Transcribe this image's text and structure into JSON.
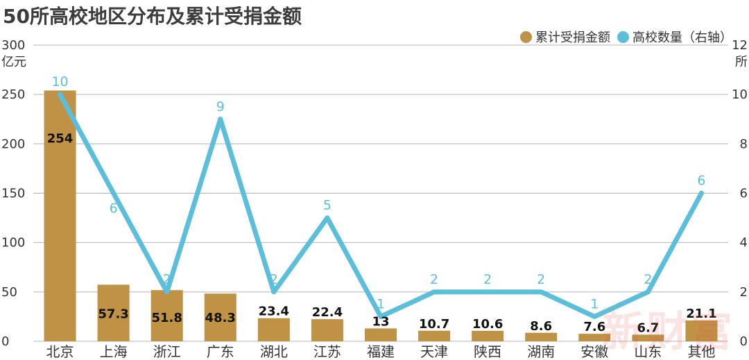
{
  "title": "50所高校地区分布及累计受捐金额",
  "colors": {
    "bar": "#bf9245",
    "line": "#5bbfdc",
    "grid": "#b5b5b5",
    "axis_text": "#333333",
    "bar_label": "#111111"
  },
  "watermark": "新财富",
  "chart_data": {
    "type": "bar",
    "categories": [
      "北京",
      "上海",
      "浙江",
      "广东",
      "湖北",
      "江苏",
      "福建",
      "天津",
      "陕西",
      "湖南",
      "安徽",
      "山东",
      "其他"
    ],
    "series": [
      {
        "name": "累计受捐金额",
        "type": "bar",
        "axis": "left",
        "values": [
          254,
          57.3,
          51.8,
          48.3,
          23.4,
          22.4,
          13,
          10.7,
          10.6,
          8.6,
          7.6,
          6.7,
          21.1
        ]
      },
      {
        "name": "高校数量（右轴）",
        "type": "line",
        "axis": "right",
        "values": [
          10,
          6,
          2,
          9,
          2,
          5,
          1,
          2,
          2,
          2,
          1,
          2,
          6
        ]
      }
    ],
    "y_left": {
      "unit": "亿元",
      "ylim": [
        0,
        300
      ],
      "ticks": [
        0,
        50,
        100,
        150,
        200,
        250,
        300
      ]
    },
    "y_right": {
      "unit": "所",
      "ylim": [
        0,
        12
      ],
      "ticks": [
        0,
        2,
        4,
        6,
        8,
        10,
        12
      ]
    },
    "grid": true,
    "legend_position": "top-right"
  }
}
